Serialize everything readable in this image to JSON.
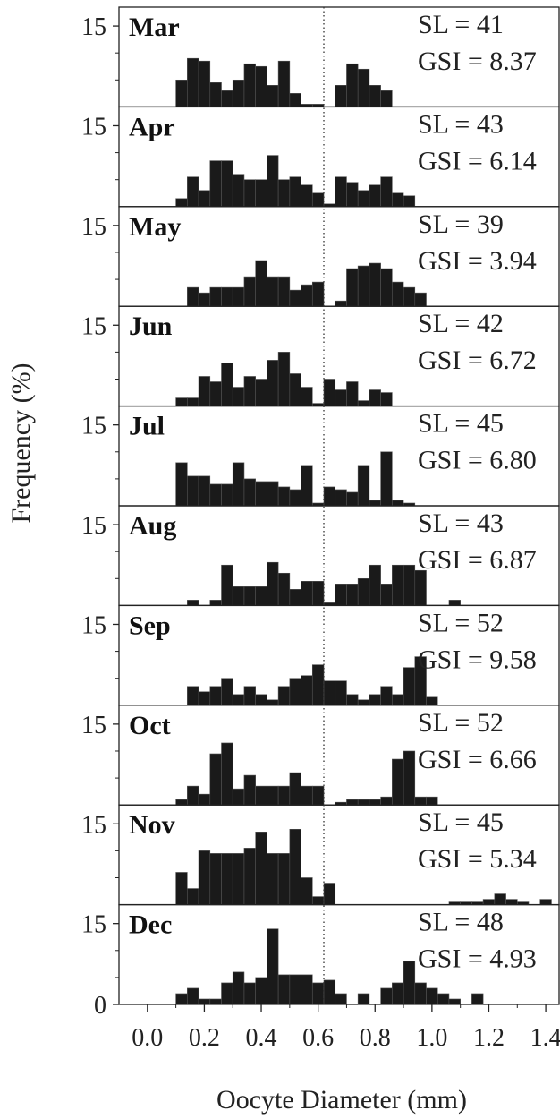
{
  "chart_data": {
    "type": "bar",
    "xlabel": "Oocyte Diameter (mm)",
    "ylabel": "Frequency (%)",
    "xlim": [
      -0.1,
      1.45
    ],
    "xticks": [
      "0.0",
      "0.2",
      "0.4",
      "0.6",
      "0.8",
      "1.0",
      "1.2",
      "1.4"
    ],
    "ylim": [
      0,
      18.5
    ],
    "yticks": [
      "0",
      "15"
    ],
    "bin_width": 0.04,
    "dotted_line_x": 0.62,
    "panels": [
      {
        "month": "Mar",
        "sl": "SL = 41",
        "gsi": "GSI = 8.37",
        "bins": [
          0.1,
          0.14,
          0.18,
          0.22,
          0.26,
          0.3,
          0.34,
          0.38,
          0.42,
          0.46,
          0.5,
          0.54,
          0.58,
          0.66,
          0.7,
          0.74,
          0.78,
          0.82
        ],
        "values": [
          5,
          9,
          8.5,
          4.5,
          3,
          5,
          8,
          7.5,
          4,
          8.5,
          2.5,
          0.5,
          0.5,
          4,
          8,
          7,
          4,
          3
        ]
      },
      {
        "month": "Apr",
        "sl": "SL = 43",
        "gsi": "GSI = 6.14",
        "bins": [
          0.1,
          0.14,
          0.18,
          0.22,
          0.26,
          0.3,
          0.34,
          0.38,
          0.42,
          0.46,
          0.5,
          0.54,
          0.58,
          0.62,
          0.66,
          0.7,
          0.74,
          0.78,
          0.82,
          0.86,
          0.9
        ],
        "values": [
          1.5,
          5.5,
          3,
          8.5,
          8.5,
          6,
          5,
          5,
          9.5,
          5,
          5.5,
          4,
          2.5,
          0.5,
          5.5,
          4.5,
          3,
          4,
          5.5,
          2.5,
          2
        ]
      },
      {
        "month": "May",
        "sl": "SL = 39",
        "gsi": "GSI = 3.94",
        "bins": [
          0.14,
          0.18,
          0.22,
          0.26,
          0.3,
          0.34,
          0.38,
          0.42,
          0.46,
          0.5,
          0.54,
          0.58,
          0.66,
          0.7,
          0.74,
          0.78,
          0.82,
          0.86,
          0.9,
          0.94
        ],
        "values": [
          3.5,
          2.5,
          3.5,
          3.5,
          3.5,
          5.5,
          8.5,
          5.5,
          5.5,
          3,
          4,
          4.5,
          1,
          7,
          7.5,
          8,
          7,
          4.5,
          3.5,
          2.5
        ]
      },
      {
        "month": "Jun",
        "sl": "SL = 42",
        "gsi": "GSI = 6.72",
        "bins": [
          0.1,
          0.14,
          0.18,
          0.22,
          0.26,
          0.3,
          0.34,
          0.38,
          0.42,
          0.46,
          0.5,
          0.54,
          0.58,
          0.62,
          0.66,
          0.7,
          0.74,
          0.78,
          0.82
        ],
        "values": [
          1.5,
          1.5,
          5.5,
          4.5,
          8,
          3.5,
          5.5,
          5,
          8.5,
          10,
          6,
          3.5,
          0.5,
          5,
          3,
          4.5,
          1,
          3,
          2.5
        ]
      },
      {
        "month": "Jul",
        "sl": "SL = 45",
        "gsi": "GSI = 6.80",
        "bins": [
          0.1,
          0.14,
          0.18,
          0.22,
          0.26,
          0.3,
          0.34,
          0.38,
          0.42,
          0.46,
          0.5,
          0.54,
          0.58,
          0.62,
          0.66,
          0.7,
          0.74,
          0.78,
          0.82,
          0.86,
          0.9
        ],
        "values": [
          8,
          5.5,
          5.5,
          4,
          4,
          8,
          5,
          4.5,
          4.5,
          3.5,
          3,
          7.5,
          0.5,
          3.5,
          3,
          2.5,
          7.5,
          1,
          10,
          1,
          0.5
        ]
      },
      {
        "month": "Aug",
        "sl": "SL = 43",
        "gsi": "GSI = 6.87",
        "bins": [
          0.14,
          0.22,
          0.26,
          0.3,
          0.34,
          0.38,
          0.42,
          0.46,
          0.5,
          0.54,
          0.58,
          0.62,
          0.66,
          0.7,
          0.74,
          0.78,
          0.82,
          0.86,
          0.9,
          0.94,
          1.06
        ],
        "values": [
          1,
          1,
          7.5,
          3.5,
          3.5,
          3.5,
          8,
          6,
          3,
          4.5,
          4.5,
          0.5,
          4,
          4,
          5,
          7.5,
          4,
          7.5,
          7.5,
          6.5,
          1
        ]
      },
      {
        "month": "Sep",
        "sl": "SL = 52",
        "gsi": "GSI = 9.58",
        "bins": [
          0.14,
          0.18,
          0.22,
          0.26,
          0.3,
          0.34,
          0.38,
          0.42,
          0.46,
          0.5,
          0.54,
          0.58,
          0.62,
          0.66,
          0.7,
          0.74,
          0.78,
          0.82,
          0.86,
          0.9,
          0.94,
          0.98
        ],
        "values": [
          3.5,
          2.5,
          3.5,
          5,
          2,
          3.5,
          2,
          1,
          3.5,
          5,
          5.5,
          7.5,
          4.5,
          4.5,
          2,
          1,
          2,
          3.5,
          2,
          7,
          9,
          1.5
        ]
      },
      {
        "month": "Oct",
        "sl": "SL = 52",
        "gsi": "GSI = 6.66",
        "bins": [
          0.1,
          0.14,
          0.18,
          0.22,
          0.26,
          0.3,
          0.34,
          0.38,
          0.42,
          0.46,
          0.5,
          0.54,
          0.58,
          0.66,
          0.7,
          0.74,
          0.78,
          0.82,
          0.86,
          0.9,
          0.94,
          0.98
        ],
        "values": [
          1,
          3.5,
          2,
          9.5,
          11.5,
          3,
          5.5,
          3.5,
          3.5,
          3.5,
          6,
          3.5,
          3.5,
          0.5,
          1,
          1,
          1,
          1.5,
          8.5,
          10,
          1.5,
          1.5
        ]
      },
      {
        "month": "Nov",
        "sl": "SL = 45",
        "gsi": "GSI = 5.34",
        "bins": [
          0.1,
          0.14,
          0.18,
          0.22,
          0.26,
          0.3,
          0.34,
          0.38,
          0.42,
          0.46,
          0.5,
          0.54,
          0.58,
          0.62,
          1.06,
          1.1,
          1.14,
          1.18,
          1.22,
          1.26,
          1.3,
          1.38
        ],
        "values": [
          6,
          3,
          10,
          9.5,
          9.5,
          9.5,
          10.5,
          13.5,
          9.5,
          9.5,
          14,
          5,
          1.5,
          4,
          0.5,
          0.5,
          0.5,
          1,
          2,
          1,
          0.5,
          1
        ]
      },
      {
        "month": "Dec",
        "sl": "SL = 48",
        "gsi": "GSI = 4.93",
        "bins": [
          0.1,
          0.14,
          0.18,
          0.22,
          0.26,
          0.3,
          0.34,
          0.38,
          0.42,
          0.46,
          0.5,
          0.54,
          0.58,
          0.62,
          0.66,
          0.74,
          0.82,
          0.86,
          0.9,
          0.94,
          0.98,
          1.02,
          1.06,
          1.14
        ],
        "values": [
          2,
          3,
          1,
          1,
          4,
          6,
          4,
          5,
          14,
          5.5,
          5.5,
          5.5,
          4,
          4.5,
          2,
          2,
          3,
          4,
          8,
          4,
          3,
          2,
          1,
          2
        ]
      }
    ]
  }
}
